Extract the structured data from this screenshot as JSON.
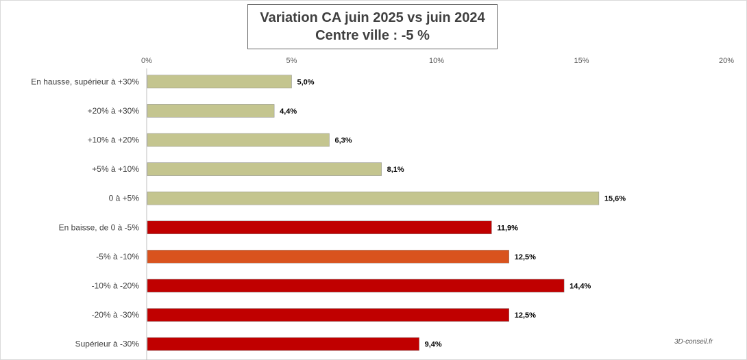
{
  "chart_data": {
    "type": "bar",
    "orientation": "horizontal",
    "title": "Variation CA juin 2025 vs juin 2024",
    "subtitle": "Centre ville  : -5 %",
    "xlim": [
      0,
      20
    ],
    "x_ticks": [
      "0%",
      "5%",
      "10%",
      "15%",
      "20%"
    ],
    "grid": false,
    "categories": [
      "En hausse, supérieur à +30%",
      "+20% à +30%",
      "+10% à +20%",
      "+5% à +10%",
      "0 à +5%",
      "En baisse, de 0 à -5%",
      "-5% à -10%",
      "-10% à -20%",
      "-20% à -30%",
      "Supérieur à -30%"
    ],
    "values": [
      5.0,
      4.4,
      6.3,
      8.1,
      15.6,
      11.9,
      12.5,
      14.4,
      12.5,
      9.4
    ],
    "labels": [
      "5,0%",
      "4,4%",
      "6,3%",
      "8,1%",
      "15,6%",
      "11,9%",
      "12,5%",
      "14,4%",
      "12,5%",
      "9,4%"
    ],
    "colors": [
      "#c4c58f",
      "#c4c58f",
      "#c4c58f",
      "#c4c58f",
      "#c4c58f",
      "#c00000",
      "#d9531e",
      "#c00000",
      "#c00000",
      "#c00000"
    ]
  },
  "watermark": "3D-conseil.fr"
}
